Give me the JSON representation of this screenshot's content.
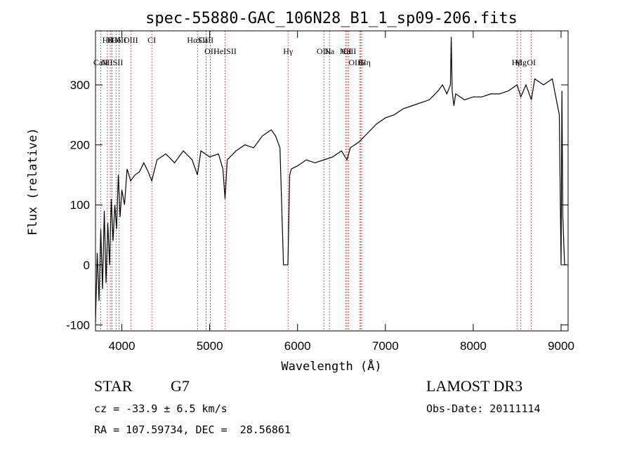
{
  "chart_data": {
    "type": "line",
    "title": "spec-55880-GAC_106N28_B1_1_sp09-206.fits",
    "xlabel": "Wavelength (Å)",
    "ylabel": "Flux (relative)",
    "xlim": [
      3700,
      9080
    ],
    "ylim": [
      -110,
      390
    ],
    "xticks": [
      4000,
      5000,
      6000,
      7000,
      8000,
      9000
    ],
    "yticks": [
      -100,
      0,
      100,
      200,
      300
    ],
    "series": [
      {
        "name": "flux",
        "x": [
          3700,
          3720,
          3740,
          3760,
          3780,
          3800,
          3820,
          3840,
          3860,
          3880,
          3900,
          3920,
          3940,
          3960,
          3980,
          4000,
          4030,
          4060,
          4100,
          4150,
          4200,
          4250,
          4300,
          4340,
          4400,
          4500,
          4600,
          4700,
          4800,
          4860,
          4900,
          5000,
          5100,
          5150,
          5175,
          5200,
          5300,
          5400,
          5500,
          5600,
          5700,
          5750,
          5800,
          5840,
          5860,
          5890,
          5910,
          5930,
          6000,
          6100,
          6200,
          6300,
          6400,
          6500,
          6563,
          6600,
          6700,
          6800,
          6900,
          7000,
          7100,
          7200,
          7300,
          7400,
          7500,
          7600,
          7650,
          7700,
          7740,
          7750,
          7760,
          7780,
          7800,
          7900,
          8000,
          8100,
          8200,
          8300,
          8400,
          8500,
          8542,
          8600,
          8662,
          8700,
          8800,
          8900,
          8980,
          9000,
          9010,
          9020,
          9040,
          9060
        ],
        "values": [
          -95,
          20,
          -60,
          60,
          -40,
          90,
          -30,
          70,
          0,
          110,
          40,
          100,
          60,
          150,
          80,
          125,
          100,
          160,
          140,
          150,
          155,
          170,
          155,
          140,
          175,
          185,
          170,
          190,
          175,
          150,
          190,
          180,
          185,
          160,
          110,
          175,
          190,
          200,
          195,
          215,
          225,
          215,
          195,
          0,
          0,
          0,
          150,
          160,
          165,
          175,
          170,
          175,
          180,
          190,
          175,
          195,
          205,
          220,
          235,
          245,
          250,
          260,
          265,
          270,
          275,
          290,
          300,
          285,
          300,
          380,
          290,
          265,
          285,
          275,
          280,
          280,
          285,
          285,
          290,
          300,
          280,
          300,
          275,
          310,
          300,
          310,
          250,
          0,
          290,
          80,
          0,
          0
        ]
      }
    ],
    "line_markers": [
      {
        "wl": 3835,
        "label": "Hθ",
        "row": 0
      },
      {
        "wl": 3869,
        "label": "K",
        "row": 0
      },
      {
        "wl": 3934,
        "label": "Hδ",
        "row": 0
      },
      {
        "wl": 3969,
        "label": "OIII",
        "row": 0
      },
      {
        "wl": 4102,
        "label": "OIII",
        "row": 0
      },
      {
        "wl": 4341,
        "label": "CI",
        "row": 0
      },
      {
        "wl": 4861,
        "label": "HαSII",
        "row": 0
      },
      {
        "wl": 4959,
        "label": "CaII",
        "row": 0
      },
      {
        "wl": 5007,
        "label": "OII",
        "row": 1
      },
      {
        "wl": 5175,
        "label": "HeISII",
        "row": 1
      },
      {
        "wl": 5892,
        "label": "Hγ",
        "row": 1
      },
      {
        "wl": 6300,
        "label": "OIII",
        "row": 1
      },
      {
        "wl": 6364,
        "label": "Na",
        "row": 1
      },
      {
        "wl": 6548,
        "label": "NII",
        "row": 1
      },
      {
        "wl": 6563,
        "label": "Li",
        "row": 1
      },
      {
        "wl": 6583,
        "label": "CaII",
        "row": 1
      },
      {
        "wl": 6707,
        "label": "OIIHη",
        "row": 2
      },
      {
        "wl": 6717,
        "label": "H",
        "row": 2
      },
      {
        "wl": 6731,
        "label": "G",
        "row": 2
      },
      {
        "wl": 8498,
        "label": "Hβ",
        "row": 2
      },
      {
        "wl": 8542,
        "label": "Mg",
        "row": 2
      },
      {
        "wl": 8662,
        "label": "OI",
        "row": 2
      },
      {
        "wl": 3889,
        "label": "NIISII",
        "row": 2
      },
      {
        "wl": 3760,
        "label": "CaII",
        "row": 2
      }
    ]
  },
  "info": {
    "class_label": "STAR",
    "subclass": "G7",
    "survey": "LAMOST DR3",
    "cz_text": "cz = -33.9 ± 6.5 km/s",
    "obs_date": "Obs-Date: 20111114",
    "coords": "RA = 107.59734, DEC =  28.56861"
  }
}
